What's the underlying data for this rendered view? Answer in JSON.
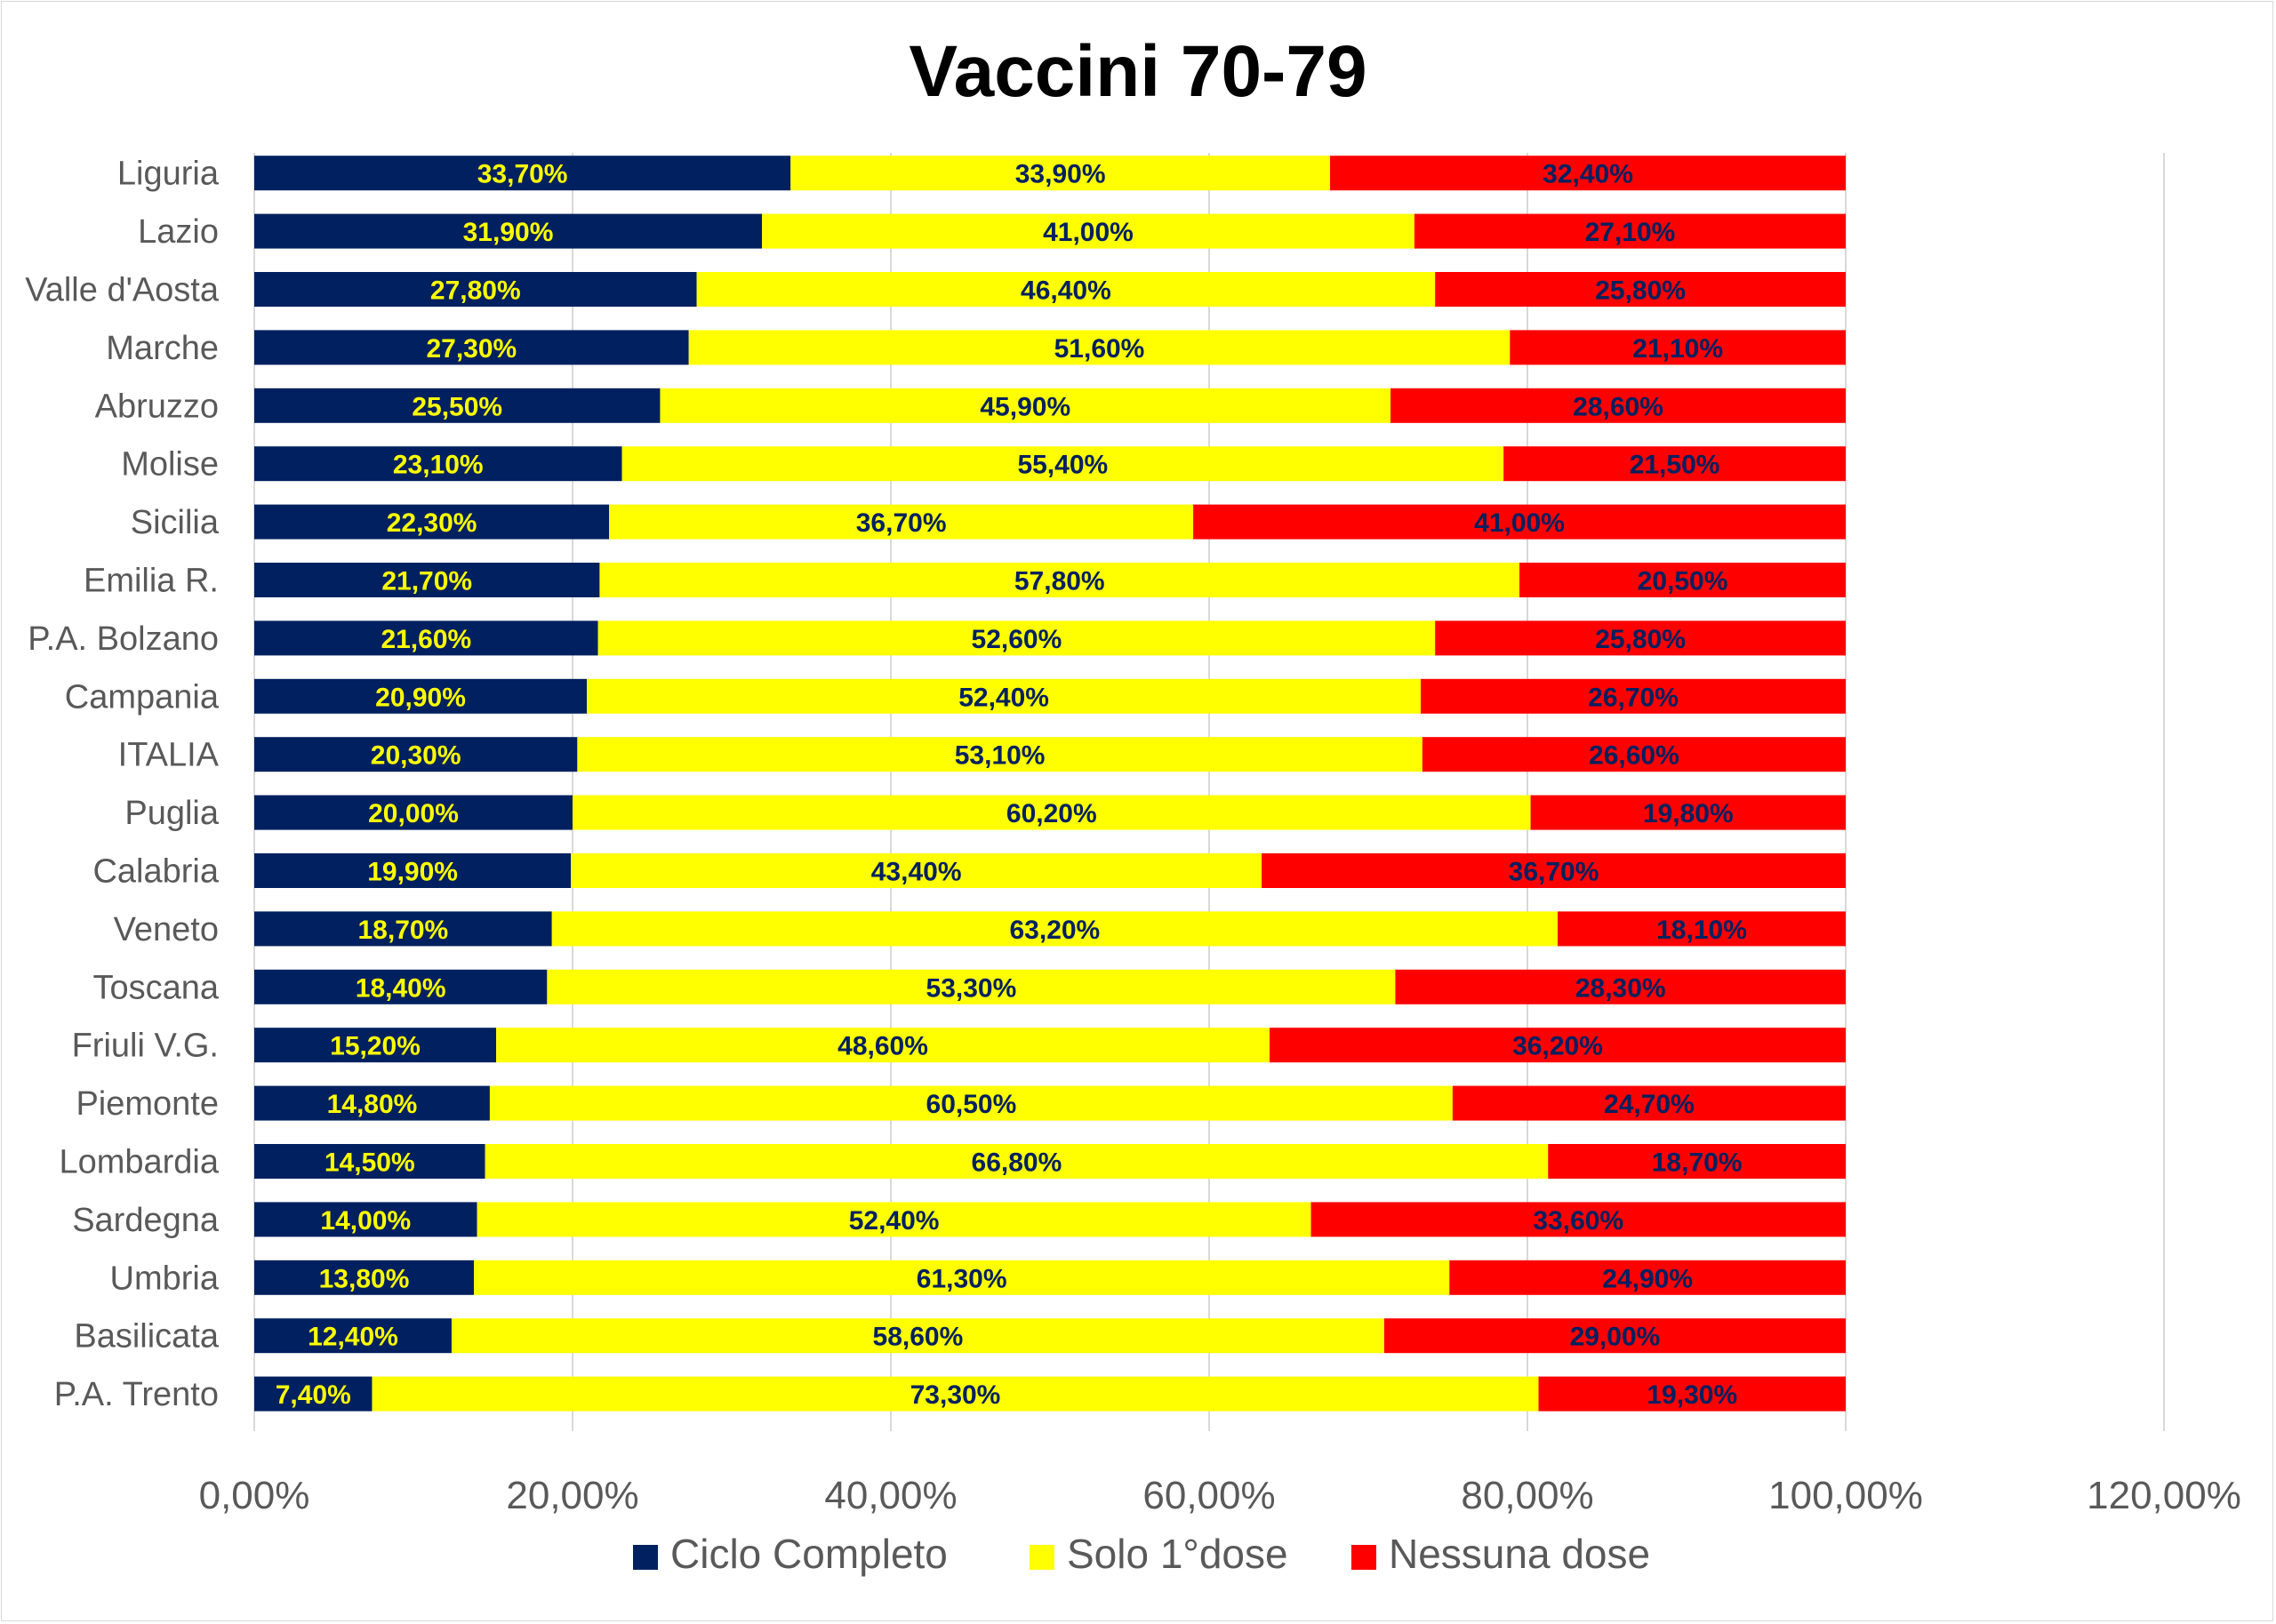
{
  "chart_data": {
    "type": "bar",
    "orientation": "horizontal",
    "stacked": true,
    "title": "Vaccini 70-79",
    "categories": [
      "Liguria",
      "Lazio",
      "Valle d'Aosta",
      "Marche",
      "Abruzzo",
      "Molise",
      "Sicilia",
      "Emilia R.",
      "P.A. Bolzano",
      "Campania",
      "ITALIA",
      "Puglia",
      "Calabria",
      "Veneto",
      "Toscana",
      "Friuli V.G.",
      "Piemonte",
      "Lombardia",
      "Sardegna",
      "Umbria",
      "Basilicata",
      "P.A. Trento"
    ],
    "series": [
      {
        "name": "Ciclo Completo",
        "color": "#002060",
        "label_color": "#ffff00",
        "values": [
          33.7,
          31.9,
          27.8,
          27.3,
          25.5,
          23.1,
          22.3,
          21.7,
          21.6,
          20.9,
          20.3,
          20.0,
          19.9,
          18.7,
          18.4,
          15.2,
          14.8,
          14.5,
          14.0,
          13.8,
          12.4,
          7.4
        ],
        "labels": [
          "33,70%",
          "31,90%",
          "27,80%",
          "27,30%",
          "25,50%",
          "23,10%",
          "22,30%",
          "21,70%",
          "21,60%",
          "20,90%",
          "20,30%",
          "20,00%",
          "19,90%",
          "18,70%",
          "18,40%",
          "15,20%",
          "14,80%",
          "14,50%",
          "14,00%",
          "13,80%",
          "12,40%",
          "7,40%"
        ]
      },
      {
        "name": "Solo 1°dose",
        "color": "#ffff00",
        "label_color": "#002060",
        "values": [
          33.9,
          41.0,
          46.4,
          51.6,
          45.9,
          55.4,
          36.7,
          57.8,
          52.6,
          52.4,
          53.1,
          60.2,
          43.4,
          63.2,
          53.3,
          48.6,
          60.5,
          66.8,
          52.4,
          61.3,
          58.6,
          73.3
        ],
        "labels": [
          "33,90%",
          "41,00%",
          "46,40%",
          "51,60%",
          "45,90%",
          "55,40%",
          "36,70%",
          "57,80%",
          "52,60%",
          "52,40%",
          "53,10%",
          "60,20%",
          "43,40%",
          "63,20%",
          "53,30%",
          "48,60%",
          "60,50%",
          "66,80%",
          "52,40%",
          "61,30%",
          "58,60%",
          "73,30%"
        ]
      },
      {
        "name": "Nessuna dose",
        "color": "#ff0000",
        "label_color": "#002060",
        "values": [
          32.4,
          27.1,
          25.8,
          21.1,
          28.6,
          21.5,
          41.0,
          20.5,
          25.8,
          26.7,
          26.6,
          19.8,
          36.7,
          18.1,
          28.3,
          36.2,
          24.7,
          18.7,
          33.6,
          24.9,
          29.0,
          19.3
        ],
        "labels": [
          "32,40%",
          "27,10%",
          "25,80%",
          "21,10%",
          "28,60%",
          "21,50%",
          "41,00%",
          "20,50%",
          "25,80%",
          "26,70%",
          "26,60%",
          "19,80%",
          "36,70%",
          "18,10%",
          "28,30%",
          "36,20%",
          "24,70%",
          "18,70%",
          "33,60%",
          "24,90%",
          "29,00%",
          "19,30%"
        ]
      }
    ],
    "x_ticks": [
      0,
      20,
      40,
      60,
      80,
      100,
      120
    ],
    "x_tick_labels": [
      "0,00%",
      "20,00%",
      "40,00%",
      "60,00%",
      "80,00%",
      "100,00%",
      "120,00%"
    ],
    "xlim": [
      0,
      120
    ],
    "grid": "vertical",
    "grid_color": "#d9d9d9",
    "legend_position": "bottom",
    "text_color": "#595959"
  }
}
